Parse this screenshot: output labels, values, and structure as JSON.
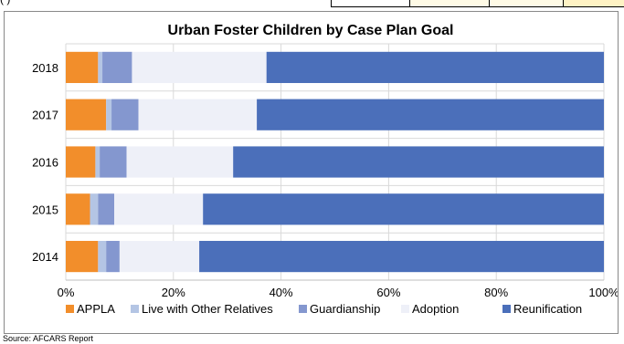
{
  "header_strip": {
    "text": "(                              )"
  },
  "source_note": "Source: AFCARS Report",
  "colors": {
    "APPLA": "#f28e2b",
    "Live with Other Relatives": "#b4c5e4",
    "Guardianship": "#8497cf",
    "Adoption": "#eef0f8",
    "Reunification": "#4b6fba",
    "grid": "#d9d9d9"
  },
  "chart_data": {
    "type": "bar",
    "orientation": "horizontal",
    "stacked": "percent",
    "title": "Urban  Foster Children by Case Plan Goal",
    "categories": [
      "2018",
      "2017",
      "2016",
      "2015",
      "2014"
    ],
    "series": [
      {
        "name": "APPLA",
        "values": [
          6.0,
          7.5,
          5.5,
          4.5,
          6.0
        ]
      },
      {
        "name": "Live with Other Relatives",
        "values": [
          0.8,
          1.0,
          0.8,
          1.5,
          1.5
        ]
      },
      {
        "name": "Guardianship",
        "values": [
          5.5,
          5.0,
          5.0,
          3.0,
          2.5
        ]
      },
      {
        "name": "Adoption",
        "values": [
          25.0,
          22.0,
          19.8,
          16.5,
          14.8
        ]
      },
      {
        "name": "Reunification",
        "values": [
          62.7,
          64.5,
          68.9,
          74.5,
          75.2
        ]
      }
    ],
    "xlim": [
      0,
      100
    ],
    "xticks": [
      "0%",
      "20%",
      "40%",
      "60%",
      "80%",
      "100%"
    ],
    "xtick_values": [
      0,
      20,
      40,
      60,
      80,
      100
    ],
    "grid": true,
    "legend_position": "bottom"
  }
}
